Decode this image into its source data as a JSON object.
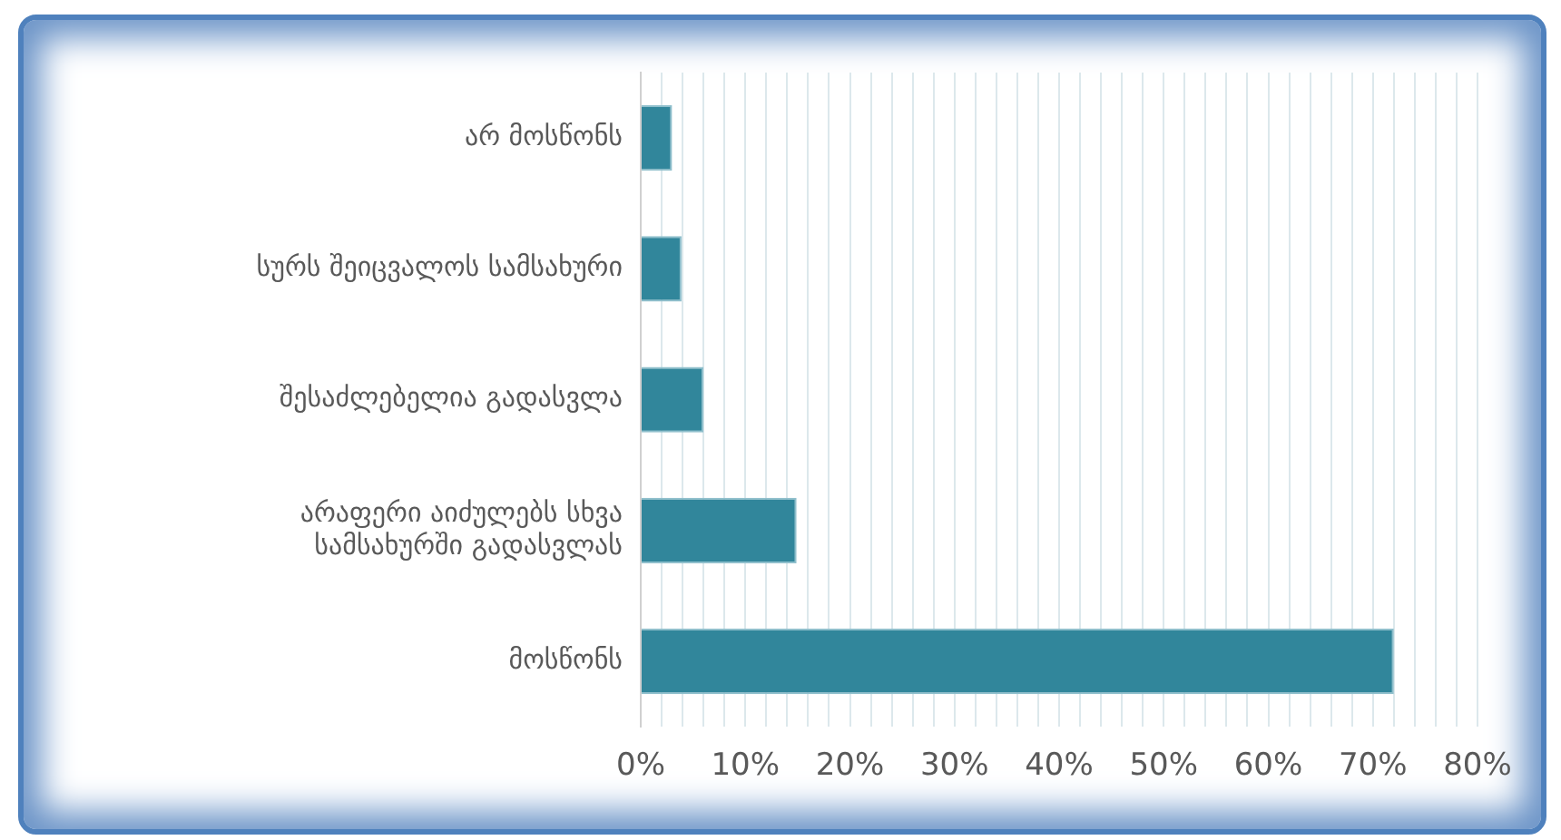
{
  "chart_data": {
    "type": "bar",
    "orientation": "horizontal",
    "categories": [
      "არ მოსწონს",
      "სურს შეიცვალოს სამსახური",
      "შესაძლებელია გადასვლა",
      "არაფერი აიძულებს სხვა სამსახურში გადასვლას",
      "მოსწონს"
    ],
    "values": [
      3.0,
      3.9,
      6.0,
      14.9,
      72.0
    ],
    "color": "#31869b",
    "xlim": [
      0,
      80
    ],
    "xticks": [
      {
        "value": 0,
        "label": "0%"
      },
      {
        "value": 2,
        "label": null
      },
      {
        "value": 4,
        "label": null
      },
      {
        "value": 6,
        "label": null
      },
      {
        "value": 8,
        "label": null
      },
      {
        "value": 10,
        "label": "10%"
      },
      {
        "value": 12,
        "label": null
      },
      {
        "value": 14,
        "label": null
      },
      {
        "value": 16,
        "label": null
      },
      {
        "value": 18,
        "label": null
      },
      {
        "value": 20,
        "label": "20%"
      },
      {
        "value": 22,
        "label": null
      },
      {
        "value": 24,
        "label": null
      },
      {
        "value": 26,
        "label": null
      },
      {
        "value": 28,
        "label": null
      },
      {
        "value": 30,
        "label": "30%"
      },
      {
        "value": 32,
        "label": null
      },
      {
        "value": 34,
        "label": null
      },
      {
        "value": 36,
        "label": null
      },
      {
        "value": 38,
        "label": null
      },
      {
        "value": 40,
        "label": "40%"
      },
      {
        "value": 42,
        "label": null
      },
      {
        "value": 44,
        "label": null
      },
      {
        "value": 46,
        "label": null
      },
      {
        "value": 48,
        "label": null
      },
      {
        "value": 50,
        "label": "50%"
      },
      {
        "value": 52,
        "label": null
      },
      {
        "value": 54,
        "label": null
      },
      {
        "value": 56,
        "label": null
      },
      {
        "value": 58,
        "label": null
      },
      {
        "value": 60,
        "label": "60%"
      },
      {
        "value": 62,
        "label": null
      },
      {
        "value": 64,
        "label": null
      },
      {
        "value": 66,
        "label": null
      },
      {
        "value": 68,
        "label": null
      },
      {
        "value": 70,
        "label": "70%"
      },
      {
        "value": 72,
        "label": null
      },
      {
        "value": 74,
        "label": null
      },
      {
        "value": 76,
        "label": null
      },
      {
        "value": 78,
        "label": null
      },
      {
        "value": 80,
        "label": "80%"
      }
    ],
    "grid": "x"
  }
}
